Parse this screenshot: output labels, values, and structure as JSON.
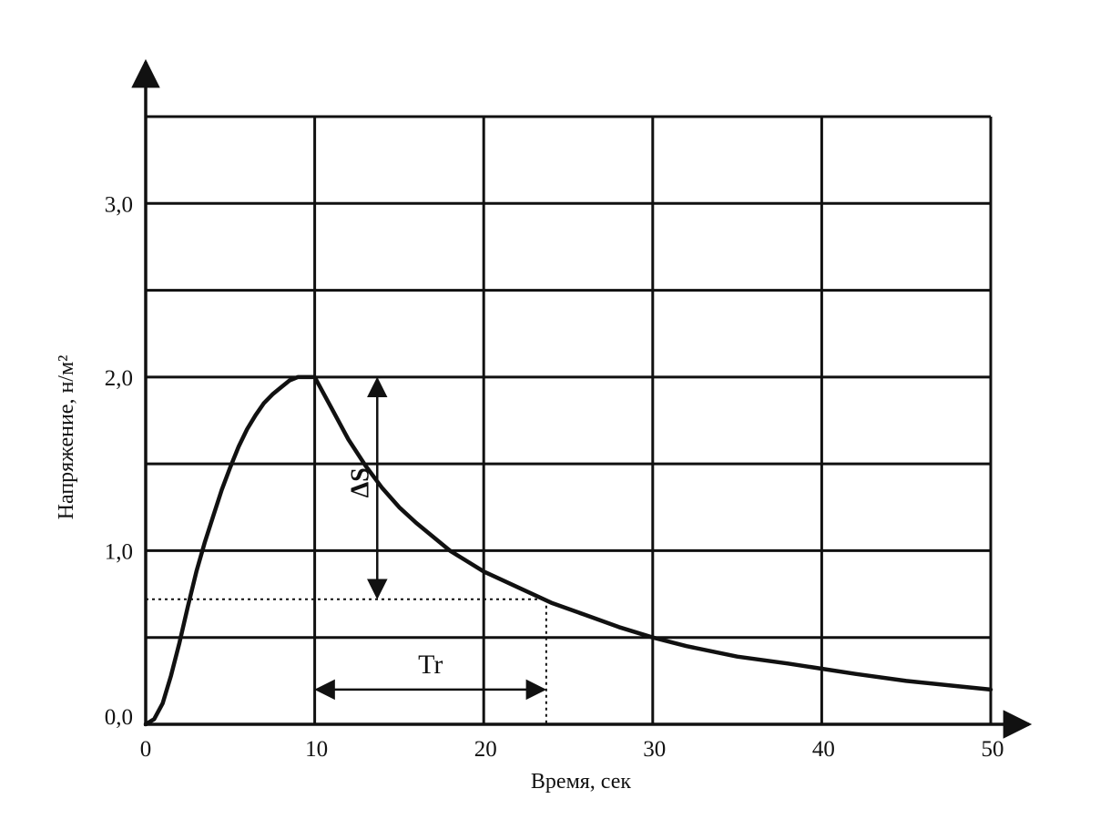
{
  "chart_data": {
    "type": "line",
    "title": "",
    "xlabel": "Время, сек",
    "ylabel": "Напряжение, н/м²",
    "xlim": [
      0,
      50
    ],
    "ylim": [
      0,
      3.5
    ],
    "x_ticks": [
      0,
      10,
      20,
      30,
      40,
      50
    ],
    "x_tick_labels": [
      "0",
      "10",
      "20",
      "30",
      "40",
      "50"
    ],
    "y_ticks": [
      0,
      1,
      2,
      3
    ],
    "y_tick_labels": [
      "0,0",
      "1,0",
      "2,0",
      "3,0"
    ],
    "grid": true,
    "grid_x": [
      0,
      10,
      20,
      30,
      40,
      50
    ],
    "grid_y": [
      0.5,
      1.0,
      1.5,
      2.0,
      2.5,
      3.0,
      3.5
    ],
    "series": [
      {
        "x": [
          0,
          0.5,
          1,
          1.5,
          2,
          2.5,
          3,
          3.5,
          4,
          4.5,
          5,
          5.5,
          6,
          6.5,
          7,
          7.5,
          8,
          8.5,
          9,
          9.5,
          10,
          11,
          12,
          13,
          14,
          15,
          16,
          18,
          20,
          22,
          24,
          26,
          28,
          30,
          32,
          35,
          38,
          40,
          42,
          45,
          48,
          50
        ],
        "y": [
          0,
          0.03,
          0.12,
          0.28,
          0.47,
          0.68,
          0.88,
          1.05,
          1.2,
          1.35,
          1.48,
          1.6,
          1.7,
          1.78,
          1.85,
          1.9,
          1.94,
          1.98,
          2.0,
          2.0,
          2.0,
          1.82,
          1.64,
          1.49,
          1.36,
          1.25,
          1.16,
          1.0,
          0.88,
          0.79,
          0.7,
          0.63,
          0.56,
          0.5,
          0.45,
          0.39,
          0.35,
          0.32,
          0.29,
          0.25,
          0.22,
          0.2
        ]
      }
    ],
    "annotations": [
      {
        "label": "ΔS",
        "type": "vertical-arrow",
        "x": 13.7,
        "y_from": 2.0,
        "y_to": 0.72
      },
      {
        "label": "Tr",
        "type": "horizontal-arrow",
        "y": 0.2,
        "x_from": 10,
        "x_to": 23.7
      },
      {
        "type": "dotted-reference",
        "x": 23.7,
        "y": 0.72
      }
    ]
  }
}
